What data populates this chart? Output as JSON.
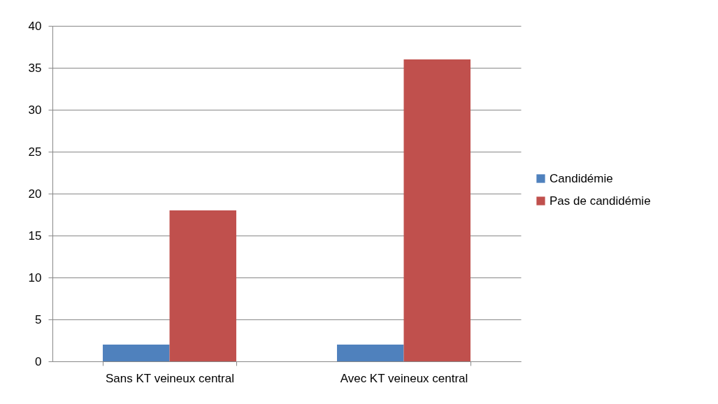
{
  "chart_data": {
    "type": "bar",
    "categories": [
      "Sans KT veineux central",
      "Avec KT veineux central"
    ],
    "series": [
      {
        "name": "Candidémie",
        "color": "#4f81bd",
        "values": [
          2,
          2
        ]
      },
      {
        "name": "Pas de candidémie",
        "color": "#c0504d",
        "values": [
          18,
          36
        ]
      }
    ],
    "ylim": [
      0,
      40
    ],
    "yticks": [
      0,
      5,
      10,
      15,
      20,
      25,
      30,
      35,
      40
    ],
    "grid": "y",
    "legend": "right"
  }
}
